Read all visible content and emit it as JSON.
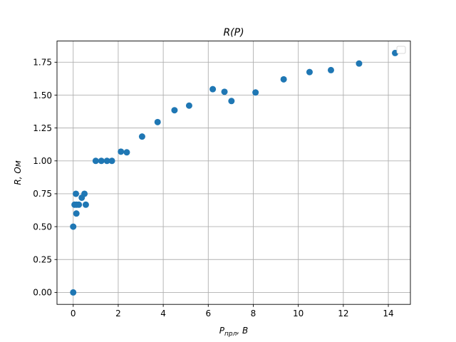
{
  "chart_data": {
    "type": "scatter",
    "title": "R(P)",
    "xlabel": "P",
    "xlabel_sub": "прл",
    "xlabel_unit": ", B",
    "ylabel": "R, Ом",
    "xlim": [
      -0.72,
      14.98
    ],
    "ylim": [
      -0.091,
      1.911
    ],
    "xticks": [
      0,
      2,
      4,
      6,
      8,
      10,
      12,
      14
    ],
    "yticks": [
      0.0,
      0.25,
      0.5,
      0.75,
      1.0,
      1.25,
      1.5,
      1.75
    ],
    "ytick_labels": [
      "0.00",
      "0.25",
      "0.50",
      "0.75",
      "1.00",
      "1.25",
      "1.50",
      "1.75"
    ],
    "grid": true,
    "legend": "top-right (empty)",
    "marker_color": "#1f77b4",
    "series": [
      {
        "x": [
          0.0,
          0.0,
          0.06,
          0.12,
          0.14,
          0.15,
          0.25,
          0.38,
          0.5,
          0.56,
          1.0,
          1.25,
          1.5,
          1.72,
          2.12,
          2.38,
          3.06,
          3.75,
          4.5,
          5.15,
          6.2,
          6.72,
          7.03,
          8.1,
          9.35,
          10.5,
          11.45,
          12.7,
          14.3
        ],
        "y": [
          0.0,
          0.5,
          0.667,
          0.75,
          0.6,
          0.667,
          0.667,
          0.72,
          0.75,
          0.667,
          1.0,
          1.0,
          1.0,
          1.0,
          1.07,
          1.065,
          1.185,
          1.295,
          1.385,
          1.42,
          1.545,
          1.525,
          1.455,
          1.52,
          1.62,
          1.675,
          1.69,
          1.74,
          1.82
        ]
      }
    ]
  }
}
